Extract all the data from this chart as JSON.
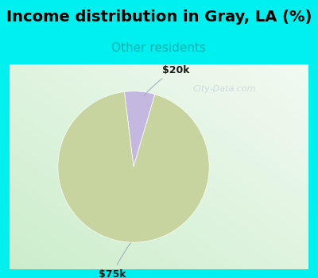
{
  "title": "Income distribution in Gray, LA (%)",
  "subtitle": "Other residents",
  "slices": [
    {
      "label": "$20k",
      "value": 6.5,
      "color": "#c5b8e0"
    },
    {
      "label": "$75k",
      "value": 93.5,
      "color": "#c8d4a0"
    }
  ],
  "bg_cyan": "#00f0f0",
  "chart_bg_colors": [
    "#e8f5e8",
    "#f5fff5",
    "#ffffff"
  ],
  "title_fontsize": 14,
  "subtitle_fontsize": 11,
  "subtitle_color": "#00b0b0",
  "startangle": 97,
  "wedge_linewidth": 0.5,
  "wedge_edgecolor": "#ffffff",
  "watermark_color": "#b8c8d8",
  "watermark_alpha": 0.6
}
